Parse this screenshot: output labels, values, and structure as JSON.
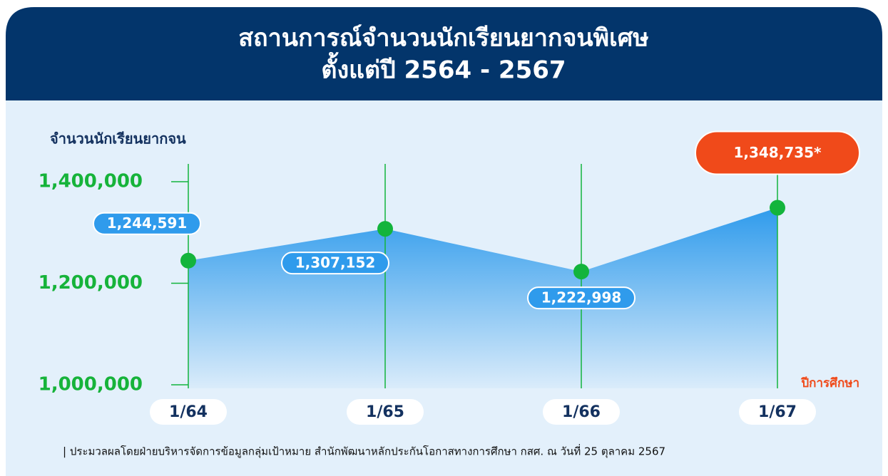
{
  "chart_data": {
    "type": "area",
    "title": "สถานการณ์จำนวนนักเรียนยากจนพิเศษ",
    "subtitle": "ตั้งแต่ปี 2564 - 2567",
    "y_axis_label": "จำนวนนักเรียนยากจน",
    "x_axis_label": "ปีการศึกษา",
    "categories": [
      "1/64",
      "1/65",
      "1/66",
      "1/67"
    ],
    "values": [
      1244591,
      1307152,
      1222998,
      1348735
    ],
    "value_labels": [
      "1,244,591",
      "1,307,152",
      "1,222,998",
      "1,348,735*"
    ],
    "ylim": [
      1000000,
      1400000
    ],
    "yticks": [
      {
        "value": 1000000,
        "label": "1,000,000"
      },
      {
        "value": 1200000,
        "label": "1,200,000"
      },
      {
        "value": 1400000,
        "label": "1,400,000"
      }
    ],
    "color": "#2f9bec",
    "marker_color": "#13b43c",
    "grid": true,
    "source": "| ประมวลผลโดยฝ่ายบริหารจัดการข้อมูลกลุ่มเป้าหมาย สำนักพัฒนาหลักประกันโอกาสทางการศึกษา กสศ. ณ วันที่ 25 ตุลาคม 2567"
  }
}
